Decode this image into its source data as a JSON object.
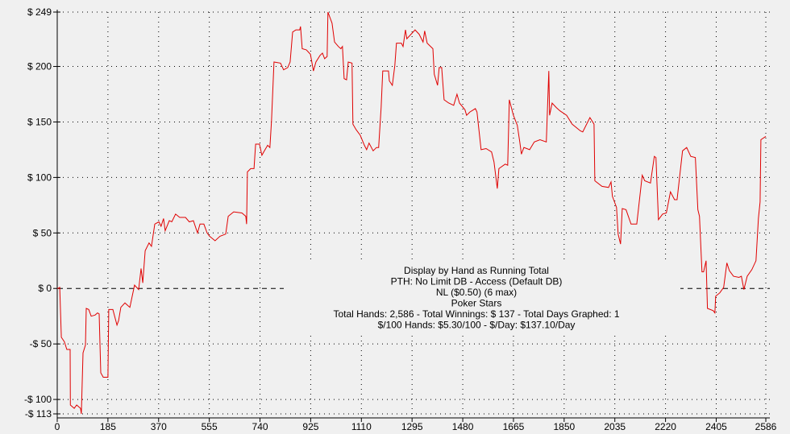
{
  "chart_data": {
    "type": "line",
    "title": "",
    "xlabel": "",
    "ylabel": "",
    "xlim": [
      0,
      2586
    ],
    "ylim": [
      -113,
      249
    ],
    "x_ticks": [
      0,
      185,
      370,
      555,
      740,
      925,
      1110,
      1295,
      1480,
      1665,
      1850,
      2035,
      2220,
      2405,
      2586
    ],
    "y_ticks": [
      {
        "value": 249,
        "label": "$ 249"
      },
      {
        "value": 200,
        "label": "$ 200"
      },
      {
        "value": 150,
        "label": "$ 150"
      },
      {
        "value": 100,
        "label": "$ 100"
      },
      {
        "value": 50,
        "label": "$ 50"
      },
      {
        "value": 0,
        "label": "$ 0"
      },
      {
        "value": -50,
        "label": "-$ 50"
      },
      {
        "value": -100,
        "label": "-$ 100"
      },
      {
        "value": -113,
        "label": "-$ 113"
      }
    ],
    "grid": true,
    "zero_line": "dashed",
    "line_color": "#e00000",
    "series": [
      {
        "points": [
          [
            0,
            0
          ],
          [
            3,
            0
          ],
          [
            9,
            1
          ],
          [
            15,
            -44
          ],
          [
            26,
            -48
          ],
          [
            35,
            -55
          ],
          [
            47,
            -55
          ],
          [
            48,
            -105
          ],
          [
            62,
            -108
          ],
          [
            71,
            -105
          ],
          [
            85,
            -108
          ],
          [
            88,
            -113
          ],
          [
            94,
            -58
          ],
          [
            103,
            -51
          ],
          [
            106,
            -18
          ],
          [
            115,
            -19
          ],
          [
            124,
            -25
          ],
          [
            138,
            -24
          ],
          [
            147,
            -22
          ],
          [
            153,
            -23
          ],
          [
            159,
            -76
          ],
          [
            168,
            -80
          ],
          [
            185,
            -80
          ],
          [
            188,
            -19
          ],
          [
            203,
            -19
          ],
          [
            218,
            -33
          ],
          [
            224,
            -29
          ],
          [
            232,
            -17
          ],
          [
            247,
            -13
          ],
          [
            265,
            -17
          ],
          [
            282,
            3
          ],
          [
            297,
            -1
          ],
          [
            306,
            18
          ],
          [
            312,
            5
          ],
          [
            321,
            34
          ],
          [
            335,
            41
          ],
          [
            344,
            38
          ],
          [
            356,
            58
          ],
          [
            371,
            60
          ],
          [
            379,
            56
          ],
          [
            388,
            63
          ],
          [
            394,
            52
          ],
          [
            409,
            61
          ],
          [
            418,
            60
          ],
          [
            432,
            67
          ],
          [
            447,
            64
          ],
          [
            468,
            64
          ],
          [
            482,
            60
          ],
          [
            497,
            61
          ],
          [
            512,
            50
          ],
          [
            521,
            58
          ],
          [
            535,
            58
          ],
          [
            547,
            50
          ],
          [
            556,
            47
          ],
          [
            576,
            43
          ],
          [
            594,
            47
          ],
          [
            615,
            49
          ],
          [
            624,
            65
          ],
          [
            644,
            69
          ],
          [
            674,
            68
          ],
          [
            688,
            65
          ],
          [
            691,
            58
          ],
          [
            694,
            105
          ],
          [
            706,
            108
          ],
          [
            718,
            108
          ],
          [
            724,
            130
          ],
          [
            738,
            130
          ],
          [
            747,
            120
          ],
          [
            756,
            124
          ],
          [
            768,
            129
          ],
          [
            776,
            127
          ],
          [
            782,
            151
          ],
          [
            791,
            204
          ],
          [
            815,
            203
          ],
          [
            826,
            197
          ],
          [
            841,
            199
          ],
          [
            850,
            204
          ],
          [
            859,
            231
          ],
          [
            871,
            233
          ],
          [
            885,
            233
          ],
          [
            888,
            236
          ],
          [
            894,
            216
          ],
          [
            909,
            215
          ],
          [
            924,
            211
          ],
          [
            935,
            196
          ],
          [
            944,
            204
          ],
          [
            959,
            210
          ],
          [
            968,
            212
          ],
          [
            976,
            207
          ],
          [
            985,
            209
          ],
          [
            988,
            249
          ],
          [
            1003,
            239
          ],
          [
            1012,
            222
          ],
          [
            1026,
            218
          ],
          [
            1035,
            216
          ],
          [
            1041,
            218
          ],
          [
            1047,
            189
          ],
          [
            1056,
            188
          ],
          [
            1062,
            204
          ],
          [
            1076,
            203
          ],
          [
            1079,
            148
          ],
          [
            1091,
            143
          ],
          [
            1106,
            138
          ],
          [
            1121,
            129
          ],
          [
            1129,
            125
          ],
          [
            1138,
            131
          ],
          [
            1153,
            124
          ],
          [
            1165,
            127
          ],
          [
            1173,
            127
          ],
          [
            1182,
            163
          ],
          [
            1188,
            196
          ],
          [
            1209,
            196
          ],
          [
            1212,
            187
          ],
          [
            1223,
            183
          ],
          [
            1232,
            201
          ],
          [
            1238,
            221
          ],
          [
            1256,
            221
          ],
          [
            1262,
            218
          ],
          [
            1271,
            233
          ],
          [
            1276,
            225
          ],
          [
            1291,
            229
          ],
          [
            1306,
            233
          ],
          [
            1321,
            229
          ],
          [
            1335,
            222
          ],
          [
            1341,
            232
          ],
          [
            1350,
            221
          ],
          [
            1371,
            216
          ],
          [
            1376,
            193
          ],
          [
            1388,
            183
          ],
          [
            1394,
            199
          ],
          [
            1403,
            199
          ],
          [
            1412,
            170
          ],
          [
            1429,
            167
          ],
          [
            1447,
            165
          ],
          [
            1459,
            175
          ],
          [
            1468,
            167
          ],
          [
            1488,
            161
          ],
          [
            1494,
            156
          ],
          [
            1506,
            159
          ],
          [
            1526,
            162
          ],
          [
            1532,
            159
          ],
          [
            1547,
            125
          ],
          [
            1565,
            126
          ],
          [
            1585,
            123
          ],
          [
            1594,
            114
          ],
          [
            1606,
            90
          ],
          [
            1612,
            108
          ],
          [
            1635,
            112
          ],
          [
            1644,
            111
          ],
          [
            1650,
            170
          ],
          [
            1665,
            156
          ],
          [
            1679,
            147
          ],
          [
            1688,
            132
          ],
          [
            1694,
            121
          ],
          [
            1703,
            127
          ],
          [
            1724,
            125
          ],
          [
            1741,
            132
          ],
          [
            1762,
            134
          ],
          [
            1785,
            132
          ],
          [
            1794,
            196
          ],
          [
            1797,
            156
          ],
          [
            1806,
            167
          ],
          [
            1821,
            163
          ],
          [
            1835,
            160
          ],
          [
            1859,
            156
          ],
          [
            1879,
            148
          ],
          [
            1909,
            142
          ],
          [
            1918,
            141
          ],
          [
            1944,
            154
          ],
          [
            1959,
            148
          ],
          [
            1962,
            97
          ],
          [
            1988,
            92
          ],
          [
            2012,
            91
          ],
          [
            2021,
            96
          ],
          [
            2026,
            83
          ],
          [
            2041,
            73
          ],
          [
            2047,
            49
          ],
          [
            2056,
            40
          ],
          [
            2062,
            72
          ],
          [
            2076,
            71
          ],
          [
            2094,
            58
          ],
          [
            2115,
            58
          ],
          [
            2135,
            102
          ],
          [
            2144,
            97
          ],
          [
            2165,
            95
          ],
          [
            2179,
            119
          ],
          [
            2185,
            118
          ],
          [
            2194,
            62
          ],
          [
            2209,
            67
          ],
          [
            2223,
            68
          ],
          [
            2238,
            87
          ],
          [
            2253,
            80
          ],
          [
            2262,
            80
          ],
          [
            2282,
            124
          ],
          [
            2297,
            127
          ],
          [
            2312,
            119
          ],
          [
            2329,
            118
          ],
          [
            2338,
            71
          ],
          [
            2344,
            65
          ],
          [
            2353,
            15
          ],
          [
            2359,
            15
          ],
          [
            2368,
            25
          ],
          [
            2373,
            -18
          ],
          [
            2394,
            -20
          ],
          [
            2400,
            -22
          ],
          [
            2403,
            -7
          ],
          [
            2418,
            -4
          ],
          [
            2432,
            1
          ],
          [
            2444,
            23
          ],
          [
            2453,
            16
          ],
          [
            2468,
            11
          ],
          [
            2488,
            10
          ],
          [
            2497,
            11
          ],
          [
            2506,
            -1
          ],
          [
            2518,
            11
          ],
          [
            2535,
            17
          ],
          [
            2550,
            25
          ],
          [
            2559,
            63
          ],
          [
            2565,
            78
          ],
          [
            2568,
            134
          ],
          [
            2586,
            137
          ]
        ]
      }
    ],
    "annotation_lines": [
      "Display by Hand as Running Total",
      "PTH: No Limit DB - Access (Default DB)",
      "NL ($0.50) (6 max)",
      "Poker Stars",
      "Total Hands: 2,586 - Total Winnings: $ 137 - Total Days Graphed: 1",
      "$/100 Hands: $5.30/100 - $/Day: $137.10/Day"
    ]
  }
}
